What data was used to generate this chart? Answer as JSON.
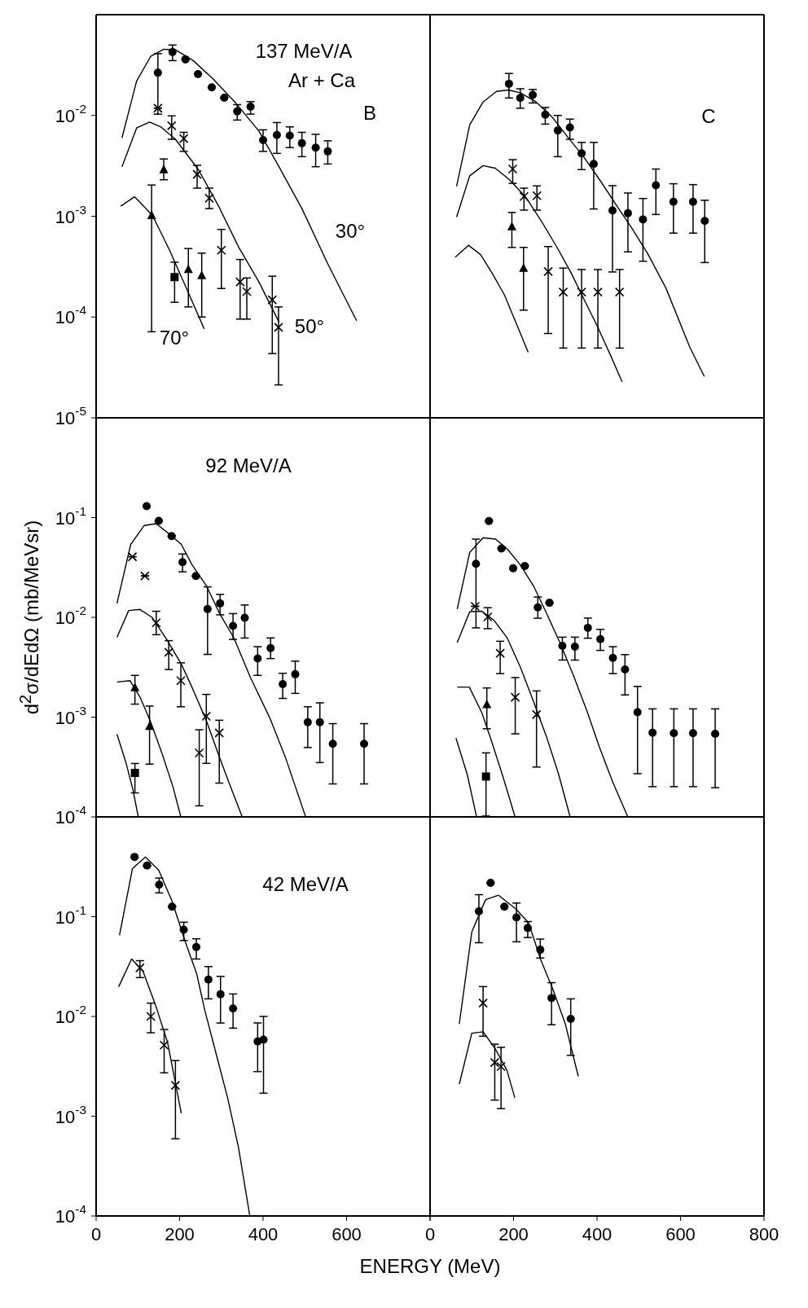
{
  "chart_data": [
    {
      "type": "scatter",
      "title": "137 MeV/A",
      "subtitle": "Ar + Ca",
      "log": true,
      "tick_labels": "y",
      "xlim": [
        0,
        800
      ],
      "xticks": [
        0,
        200,
        400,
        600
      ],
      "ylim": [
        1e-05,
        0.1
      ],
      "yticks": [
        {
          "value": 1e-05,
          "label": "10$^{-5}$"
        },
        {
          "value": 0.0001,
          "label": "10$^{-4}$"
        },
        {
          "value": 0.001,
          "label": "10$^{-3}$"
        },
        {
          "value": 0.01,
          "label": "10$^{-2}$"
        }
      ],
      "annotations": [
        "B",
        "30°",
        "50°",
        "70°"
      ],
      "series": [
        {
          "type": "scatter",
          "marker": "circle",
          "color": "#000000",
          "x": [
            148,
            183,
            214,
            244,
            277,
            307,
            338,
            370,
            400,
            433,
            464,
            493,
            526,
            555
          ],
          "values": [
            0.0265,
            0.0426,
            0.036,
            0.0257,
            0.019,
            0.015,
            0.011,
            0.0122,
            0.0057,
            0.0064,
            0.0063,
            0.0053,
            0.0048,
            0.0044
          ],
          "errors": [
            [
              0.0103,
              0.041
            ],
            [
              0.035,
              0.05
            ],
            null,
            null,
            null,
            null,
            [
              0.009,
              0.0128
            ],
            [
              0.0103,
              0.0137
            ],
            [
              0.0044,
              0.0072
            ],
            [
              0.0042,
              0.0085
            ],
            [
              0.0048,
              0.0077
            ],
            [
              0.0039,
              0.0068
            ],
            [
              0.0031,
              0.0065
            ],
            [
              0.0033,
              0.0056
            ]
          ]
        },
        {
          "type": "scatter",
          "marker": "cross",
          "color": "#000000",
          "x": [
            148,
            181,
            210,
            242,
            271,
            300,
            345,
            361,
            422,
            437
          ],
          "values": [
            0.0118,
            0.0079,
            0.0059,
            0.0026,
            0.00151,
            0.00046,
            0.000223,
            0.000179,
            0.000148,
            7.9e-05
          ],
          "errors": [
            null,
            [
              0.0058,
              0.0099
            ],
            [
              0.0044,
              0.0068
            ],
            [
              0.0019,
              0.0032
            ],
            [
              0.00119,
              0.0019
            ],
            [
              0.000192,
              0.00074
            ],
            [
              9.54e-05,
              0.000372
            ],
            [
              9.54e-05,
              0.000244
            ],
            [
              4.34e-05,
              0.000254
            ],
            [
              2.12e-05,
              0.000126
            ]
          ]
        },
        {
          "type": "scatter",
          "marker": "triangle",
          "color": "#000000",
          "x": [
            133,
            162,
            221,
            253
          ],
          "values": [
            0.00102,
            0.0029,
            0.000297,
            0.000258
          ],
          "errors": [
            [
              7.14e-05,
              0.00204
            ],
            [
              0.0023,
              0.0037
            ],
            [
              0.000126,
              0.000478
            ],
            [
              0.0001,
              0.00043
            ]
          ]
        },
        {
          "type": "scatter",
          "marker": "square",
          "color": "#000000",
          "x": [
            188
          ],
          "values": [
            0.000249
          ],
          "errors": [
            [
              0.00014,
              0.00035
            ]
          ]
        },
        {
          "type": "line",
          "marker": "none",
          "color": "#000000",
          "x": [
            62,
            97,
            131,
            162,
            190,
            232,
            279,
            335,
            390,
            438,
            493,
            555,
            624
          ],
          "values": [
            0.006,
            0.0219,
            0.0387,
            0.0454,
            0.0448,
            0.0352,
            0.0233,
            0.0132,
            0.007,
            0.0031,
            0.00119,
            0.000337,
            9.2e-05
          ]
        },
        {
          "type": "line",
          "marker": "none",
          "color": "#000000",
          "x": [
            62,
            97,
            128,
            155,
            190,
            245,
            293,
            342,
            390,
            438
          ],
          "values": [
            0.0031,
            0.0075,
            0.0086,
            0.0077,
            0.0058,
            0.0029,
            0.00127,
            0.00049,
            0.000223,
            8.93e-05
          ]
        },
        {
          "type": "line",
          "marker": "none",
          "color": "#000000",
          "x": [
            59,
            92,
            135,
            176,
            217,
            259
          ],
          "values": [
            0.00126,
            0.00156,
            0.00102,
            0.00046,
            0.00019,
            7.62e-05
          ]
        }
      ]
    },
    {
      "type": "scatter",
      "log": true,
      "tick_labels": false,
      "xlim": [
        0,
        800
      ],
      "xticks": [
        0,
        200,
        400,
        600,
        800
      ],
      "ylim": [
        1e-05,
        0.1
      ],
      "yticks": [
        {
          "value": 1e-05,
          "label": null
        },
        {
          "value": 0.0001,
          "label": null
        },
        {
          "value": 0.001,
          "label": null
        },
        {
          "value": 0.01,
          "label": null
        }
      ],
      "annotations": [
        "C"
      ],
      "series": [
        {
          "type": "scatter",
          "marker": "circle",
          "color": "#000000",
          "x": [
            189,
            216,
            246,
            276,
            306,
            335,
            363,
            392,
            437,
            474,
            510,
            541,
            583,
            630,
            658
          ],
          "values": [
            0.0206,
            0.0149,
            0.016,
            0.0102,
            0.0071,
            0.0076,
            0.0042,
            0.0033,
            0.00114,
            0.00107,
            0.00093,
            0.00203,
            0.00139,
            0.00139,
            0.0009
          ],
          "errors": [
            [
              0.0149,
              0.0261
            ],
            [
              0.0118,
              0.0184
            ],
            [
              0.0133,
              0.0181
            ],
            [
              0.0082,
              0.012
            ],
            [
              0.0039,
              0.01
            ],
            [
              0.0058,
              0.0092
            ],
            [
              0.0029,
              0.0054
            ],
            [
              0.00118,
              0.0054
            ],
            [
              0.00028,
              0.00201
            ],
            [
              0.000443,
              0.0017
            ],
            [
              0.000358,
              0.0015
            ],
            [
              0.00104,
              0.00294
            ],
            [
              0.00068,
              0.0021
            ],
            [
              0.00068,
              0.00206
            ],
            [
              0.000347,
              0.00144
            ]
          ]
        },
        {
          "type": "scatter",
          "marker": "cross",
          "color": "#000000",
          "x": [
            198,
            225,
            256,
            283,
            319,
            363,
            402,
            454
          ],
          "values": [
            0.00294,
            0.00157,
            0.0016,
            0.000283,
            0.000177,
            0.000177,
            0.000177,
            0.000177
          ],
          "errors": [
            [
              0.00212,
              0.00364
            ],
            [
              0.00115,
              0.0019
            ],
            [
              0.00115,
              0.002
            ],
            [
              6.86e-05,
              0.0005
            ],
            [
              4.92e-05,
              0.000306
            ],
            [
              4.92e-05,
              0.000296
            ],
            [
              4.92e-05,
              0.000296
            ],
            [
              4.92e-05,
              0.000296
            ]
          ]
        },
        {
          "type": "scatter",
          "marker": "triangle",
          "color": "#000000",
          "x": [
            196,
            224
          ],
          "values": [
            0.00079,
            0.000306
          ],
          "errors": [
            [
              0.00049,
              0.00109
            ],
            [
              0.000117,
              0.000491
            ]
          ]
        },
        {
          "type": "line",
          "marker": "none",
          "color": "#000000",
          "x": [
            63.5,
            95,
            127,
            159,
            187,
            216,
            254,
            292,
            330,
            368,
            406,
            444,
            483,
            521,
            565,
            622,
            657
          ],
          "values": [
            0.00198,
            0.00807,
            0.0136,
            0.0173,
            0.0179,
            0.0168,
            0.0136,
            0.0097,
            0.0061,
            0.00388,
            0.00231,
            0.00133,
            0.000766,
            0.000428,
            0.000194,
            5.05e-05,
            2.57e-05
          ]
        },
        {
          "type": "line",
          "marker": "none",
          "color": "#000000",
          "x": [
            63.5,
            95,
            127,
            156,
            190,
            229,
            267,
            305,
            337,
            368,
            400,
            432,
            460
          ],
          "values": [
            0.00098,
            0.00252,
            0.00318,
            0.003,
            0.00231,
            0.00155,
            0.00089,
            0.000484,
            0.000279,
            0.000152,
            8.22e-05,
            4.2e-05,
            2.28e-05
          ]
        },
        {
          "type": "line",
          "marker": "none",
          "color": "#000000",
          "x": [
            60,
            92,
            121,
            149,
            178,
            206,
            235
          ],
          "values": [
            0.00039,
            0.000515,
            0.000416,
            0.000271,
            0.000166,
            8.75e-05,
            4.47e-05
          ]
        }
      ]
    },
    {
      "type": "scatter",
      "title": "92 MeV/A",
      "ylabel": "d$^{2}$σ/dEdΩ (mb/MeVsr)",
      "log": true,
      "tick_labels": "y",
      "xlim": [
        0,
        800
      ],
      "xticks": [
        0,
        200,
        400,
        600
      ],
      "ylim": [
        0.0001,
        1
      ],
      "yticks": [
        {
          "value": 0.0001,
          "label": "10$^{-4}$"
        },
        {
          "value": 0.001,
          "label": "10$^{-3}$"
        },
        {
          "value": 0.01,
          "label": "10$^{-2}$"
        },
        {
          "value": 0.1,
          "label": "10$^{-1}$"
        }
      ],
      "series": [
        {
          "type": "scatter",
          "marker": "circle",
          "color": "#000000",
          "x": [
            121,
            150,
            181,
            207,
            239,
            267,
            297,
            328,
            356,
            387,
            418,
            447,
            477,
            507,
            536,
            567,
            642
          ],
          "values": [
            0.13,
            0.0927,
            0.0653,
            0.0357,
            0.026,
            0.0121,
            0.0138,
            0.0082,
            0.0099,
            0.00387,
            0.00492,
            0.00214,
            0.00269,
            0.00089,
            0.00089,
            0.00054,
            0.00054
          ],
          "errors": [
            null,
            null,
            null,
            [
              0.0286,
              0.0432
            ],
            null,
            [
              0.00425,
              0.0202
            ],
            [
              0.0106,
              0.017
            ],
            [
              0.006,
              0.0109
            ],
            [
              0.0062,
              0.0133
            ],
            [
              0.00262,
              0.00508
            ],
            [
              0.00386,
              0.00622
            ],
            [
              0.00154,
              0.00275
            ],
            [
              0.00173,
              0.00364
            ],
            [
              0.000496,
              0.00127
            ],
            [
              0.00035,
              0.00139
            ],
            [
              0.000214,
              0.00086
            ],
            [
              0.000214,
              0.00086
            ]
          ]
        },
        {
          "type": "scatter",
          "marker": "cross",
          "color": "#000000",
          "x": [
            87,
            117,
            144,
            174,
            203,
            247,
            264,
            295
          ],
          "values": [
            0.0405,
            0.026,
            0.0088,
            0.00447,
            0.00232,
            0.000437,
            0.00102,
            0.000695
          ],
          "errors": [
            null,
            null,
            [
              0.0067,
              0.0115
            ],
            [
              0.003,
              0.00584
            ],
            [
              0.00127,
              0.0035
            ],
            [
              0.000129,
              0.000747
            ],
            [
              0.000344,
              0.00169
            ],
            [
              0.000218,
              0.00093
            ]
          ]
        },
        {
          "type": "scatter",
          "marker": "triangle",
          "color": "#000000",
          "x": [
            93,
            128
          ],
          "values": [
            0.00198,
            0.00081
          ],
          "errors": [
            [
              0.00135,
              0.00262
            ],
            [
              0.000338,
              0.00129
            ]
          ]
        },
        {
          "type": "scatter",
          "marker": "square",
          "color": "#000000",
          "x": [
            93
          ],
          "values": [
            0.000276
          ],
          "errors": [
            [
              0.000174,
              0.000343
            ]
          ]
        },
        {
          "type": "line",
          "marker": "none",
          "color": "#000000",
          "x": [
            50,
            83,
            115,
            144,
            177,
            204,
            230,
            264,
            297,
            330,
            370,
            416,
            455,
            502
          ],
          "values": [
            0.0138,
            0.054,
            0.0832,
            0.0869,
            0.0675,
            0.054,
            0.0335,
            0.0208,
            0.0107,
            0.00622,
            0.00248,
            0.000984,
            0.000379,
            0.0001
          ]
        },
        {
          "type": "line",
          "marker": "none",
          "color": "#000000",
          "x": [
            50,
            78,
            105,
            134,
            171,
            204,
            230,
            264,
            290,
            317,
            350
          ],
          "values": [
            0.0063,
            0.0117,
            0.012,
            0.01,
            0.00584,
            0.0034,
            0.00198,
            0.000925,
            0.000459,
            0.000228,
            0.0001
          ]
        },
        {
          "type": "line",
          "marker": "none",
          "color": "#000000",
          "x": [
            50,
            81,
            105,
            131,
            158,
            184,
            203
          ],
          "values": [
            0.00225,
            0.00232,
            0.00159,
            0.00089,
            0.000431,
            0.000201,
            0.0001
          ]
        },
        {
          "type": "line",
          "marker": "none",
          "color": "#000000",
          "x": [
            50,
            71,
            88,
            101
          ],
          "values": [
            0.000673,
            0.000356,
            0.000189,
            0.0001
          ]
        }
      ]
    },
    {
      "type": "scatter",
      "log": true,
      "tick_labels": false,
      "xlim": [
        0,
        800
      ],
      "xticks": [
        0,
        200,
        400,
        600,
        800
      ],
      "ylim": [
        0.0001,
        1
      ],
      "yticks": [
        {
          "value": 0.0001,
          "label": null
        },
        {
          "value": 0.001,
          "label": null
        },
        {
          "value": 0.01,
          "label": null
        },
        {
          "value": 0.1,
          "label": null
        }
      ],
      "series": [
        {
          "type": "scatter",
          "marker": "circle",
          "color": "#000000",
          "x": [
            110,
            141,
            171,
            199,
            227,
            258,
            286,
            317,
            347,
            378,
            408,
            438,
            467,
            497,
            533,
            584,
            630,
            683
          ],
          "values": [
            0.0344,
            0.0923,
            0.049,
            0.0311,
            0.0327,
            0.0126,
            0.014,
            0.00518,
            0.00508,
            0.00785,
            0.00605,
            0.00392,
            0.003,
            0.00112,
            0.000698,
            0.00069,
            0.00069,
            0.00068
          ],
          "errors": [
            [
              0.00785,
              0.0608
            ],
            null,
            null,
            null,
            null,
            [
              0.0098,
              0.016
            ],
            null,
            [
              0.00373,
              0.00633
            ],
            [
              0.00373,
              0.00633
            ],
            [
              0.00618,
              0.00983
            ],
            [
              0.00466,
              0.00758
            ],
            [
              0.00273,
              0.00508
            ],
            [
              0.00167,
              0.00423
            ],
            [
              0.000271,
              0.00203
            ],
            [
              0.000201,
              0.00121
            ],
            [
              0.000201,
              0.00121
            ],
            [
              0.000201,
              0.00121
            ],
            [
              0.000196,
              0.00121
            ]
          ]
        },
        {
          "type": "scatter",
          "marker": "cross",
          "color": "#000000",
          "x": [
            108,
            138,
            168,
            204,
            255
          ],
          "values": [
            0.0129,
            0.0101,
            0.00436,
            0.00158,
            0.00106
          ],
          "errors": [
            null,
            [
              0.0077,
              0.0125
            ],
            [
              0.00273,
              0.00576
            ],
            [
              0.00068,
              0.00249
            ],
            [
              0.000316,
              0.00183
            ]
          ]
        },
        {
          "type": "scatter",
          "marker": "triangle",
          "color": "#000000",
          "x": [
            136
          ],
          "values": [
            0.00134
          ],
          "errors": [
            [
              0.000764,
              0.00196
            ]
          ]
        },
        {
          "type": "scatter",
          "marker": "square",
          "color": "#000000",
          "x": [
            134
          ],
          "values": [
            0.000254
          ],
          "errors": [
            [
              0.000102,
              0.000438
            ]
          ]
        },
        {
          "type": "line",
          "marker": "none",
          "color": "#000000",
          "x": [
            65,
            95,
            127,
            157,
            184,
            216,
            248,
            279,
            311,
            343,
            375,
            406,
            438,
            473
          ],
          "values": [
            0.0121,
            0.0447,
            0.0628,
            0.0608,
            0.049,
            0.0337,
            0.0206,
            0.011,
            0.00558,
            0.00265,
            0.00118,
            0.000496,
            0.000221,
            0.000102
          ]
        },
        {
          "type": "line",
          "marker": "none",
          "color": "#000000",
          "x": [
            65,
            95,
            124,
            152,
            184,
            216,
            248,
            279,
            308,
            335
          ],
          "values": [
            0.00558,
            0.0114,
            0.0115,
            0.00946,
            0.0063,
            0.00319,
            0.00143,
            0.000635,
            0.000267,
            0.000102
          ]
        },
        {
          "type": "line",
          "marker": "none",
          "color": "#000000",
          "x": [
            65,
            94,
            124,
            146,
            175,
            203
          ],
          "values": [
            0.002,
            0.002,
            0.00111,
            0.000597,
            0.00025,
            0.000102
          ]
        },
        {
          "type": "line",
          "marker": "none",
          "color": "#000000",
          "x": [
            62,
            89,
            111
          ],
          "values": [
            0.000617,
            0.000267,
            0.000102
          ]
        }
      ]
    },
    {
      "type": "scatter",
      "title": "42 MeV/A",
      "xlabel": "ENERGY (MeV)",
      "log": true,
      "xlim": [
        0,
        800
      ],
      "xticks": [
        0,
        200,
        400,
        600,
        {
          "value": 800,
          "label": null
        }
      ],
      "ylim": [
        0.0001,
        1
      ],
      "yticks": [
        {
          "value": 0.0001,
          "label": "10$^{-4}$"
        },
        {
          "value": 0.001,
          "label": "10$^{-3}$"
        },
        {
          "value": 0.01,
          "label": "10$^{-2}$"
        },
        {
          "value": 0.1,
          "label": "10$^{-1}$"
        }
      ],
      "series": [
        {
          "type": "scatter",
          "marker": "circle",
          "color": "#000000",
          "x": [
            92,
            122,
            151,
            182,
            210,
            240,
            269,
            298,
            328,
            387,
            401
          ],
          "values": [
            0.397,
            0.325,
            0.209,
            0.126,
            0.0741,
            0.0496,
            0.0234,
            0.0167,
            0.012,
            0.00562,
            0.00586
          ],
          "errors": [
            null,
            null,
            [
              0.173,
              0.244
            ],
            null,
            [
              0.0577,
              0.088
            ],
            [
              0.0376,
              0.06
            ],
            [
              0.015,
              0.0316
            ],
            [
              0.00859,
              0.0252
            ],
            [
              0.00763,
              0.0168
            ],
            [
              0.0028,
              0.00861
            ],
            [
              0.0017,
              0.01
            ]
          ]
        },
        {
          "type": "scatter",
          "marker": "cross",
          "color": "#000000",
          "x": [
            105,
            131,
            163,
            190
          ],
          "values": [
            0.0307,
            0.01,
            0.00515,
            0.00204
          ],
          "errors": [
            [
              0.0245,
              0.0362
            ],
            [
              0.00686,
              0.0136
            ],
            [
              0.00272,
              0.0074
            ],
            [
              0.000594,
              0.00361
            ]
          ]
        },
        {
          "type": "line",
          "marker": "none",
          "color": "#000000",
          "x": [
            56,
            87,
            118,
            150,
            182,
            212,
            241,
            260,
            285,
            315,
            341,
            368
          ],
          "values": [
            0.0651,
            0.303,
            0.397,
            0.292,
            0.143,
            0.0585,
            0.0267,
            0.0117,
            0.00463,
            0.00153,
            0.000488,
            0.000101
          ]
        },
        {
          "type": "line",
          "marker": "none",
          "color": "#000000",
          "x": [
            54,
            85,
            112,
            142,
            171,
            204
          ],
          "values": [
            0.0198,
            0.0376,
            0.0287,
            0.0131,
            0.00554,
            0.00107
          ]
        }
      ]
    },
    {
      "type": "scatter",
      "log": true,
      "tick_labels": "x",
      "xlim": [
        0,
        800
      ],
      "xticks": [
        0,
        200,
        400,
        600,
        800
      ],
      "ylim": [
        0.0001,
        1
      ],
      "yticks": [
        {
          "value": 0.0001,
          "label": null
        },
        {
          "value": 0.001,
          "label": null
        },
        {
          "value": 0.01,
          "label": null
        },
        {
          "value": 0.1,
          "label": null
        }
      ],
      "series": [
        {
          "type": "scatter",
          "marker": "circle",
          "color": "#000000",
          "x": [
            117,
            145,
            178,
            207,
            234,
            264,
            291,
            337
          ],
          "values": [
            0.113,
            0.218,
            0.126,
            0.098,
            0.077,
            0.0466,
            0.0153,
            0.00944
          ],
          "errors": [
            [
              0.0548,
              0.166
            ],
            null,
            null,
            [
              0.056,
              0.137
            ],
            [
              0.0618,
              0.0893
            ],
            [
              0.0385,
              0.0596
            ],
            [
              0.00825,
              0.0218
            ],
            [
              0.00407,
              0.015
            ]
          ]
        },
        {
          "type": "scatter",
          "marker": "cross",
          "color": "#000000",
          "x": [
            127,
            155,
            170
          ],
          "values": [
            0.0136,
            0.00345,
            0.00315
          ],
          "errors": [
            [
              0.00633,
              0.0199
            ],
            [
              0.00145,
              0.00527
            ],
            [
              0.00119,
              0.0049
            ]
          ]
        },
        {
          "type": "line",
          "marker": "none",
          "color": "#000000",
          "x": [
            70,
            100,
            133,
            164,
            206,
            236,
            265,
            295,
            324,
            355
          ],
          "values": [
            0.0084,
            0.0702,
            0.148,
            0.164,
            0.119,
            0.0868,
            0.0371,
            0.0183,
            0.0084,
            0.00251
          ]
        },
        {
          "type": "line",
          "marker": "none",
          "color": "#000000",
          "x": [
            70,
            100,
            127,
            156,
            184,
            203
          ],
          "values": [
            0.0021,
            0.00678,
            0.00702,
            0.00475,
            0.0029,
            0.00153
          ]
        }
      ]
    }
  ]
}
